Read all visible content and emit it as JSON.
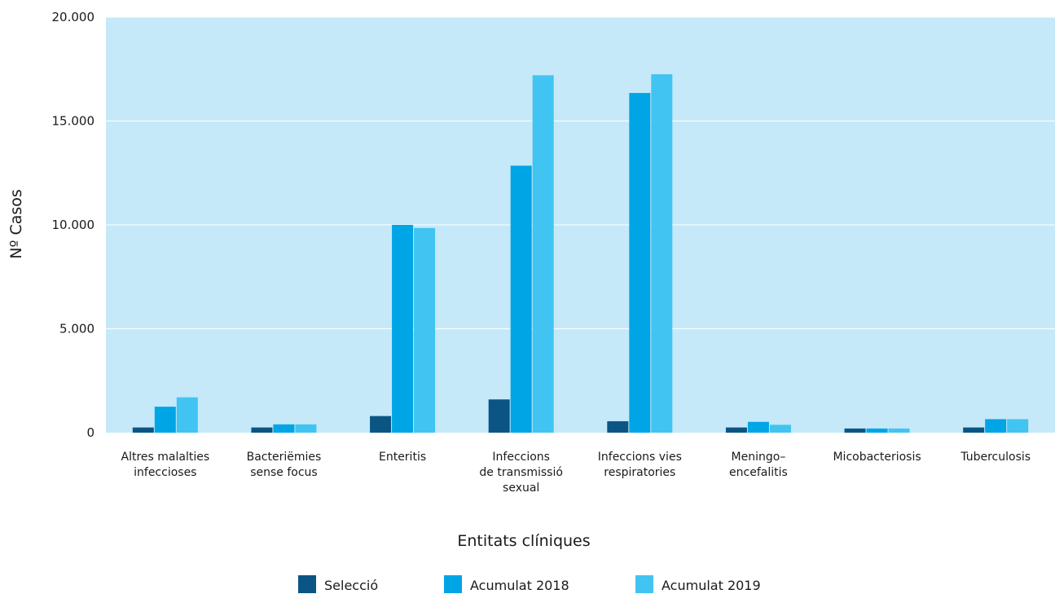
{
  "chart_data": {
    "type": "bar",
    "xlabel": "Entitats clíniques",
    "ylabel": "Nº Casos",
    "ylim": [
      0,
      20000
    ],
    "yticks": [
      0,
      5000,
      10000,
      15000,
      20000
    ],
    "ytick_labels": [
      "0",
      "5.000",
      "10.000",
      "15.000",
      "20.000"
    ],
    "grid": true,
    "legend_position": "bottom-center",
    "plot_background": "#c5e9f8",
    "categories": [
      [
        "Altres malalties",
        "infeccioses"
      ],
      [
        "Bacteriëmies",
        "sense focus"
      ],
      [
        "Enteritis"
      ],
      [
        "Infeccions",
        "de transmissió",
        "sexual"
      ],
      [
        "Infeccions vies",
        "respiratories"
      ],
      [
        "Meningo–",
        "encefalitis"
      ],
      [
        "Micobacteriosis"
      ],
      [
        "Tuberculosis"
      ]
    ],
    "series": [
      {
        "name": "Selecció",
        "color": "#0b5585",
        "values": [
          250,
          250,
          800,
          1600,
          550,
          250,
          200,
          250
        ]
      },
      {
        "name": "Acumulat 2018",
        "color": "#00a5e6",
        "values": [
          1250,
          400,
          10000,
          12850,
          16350,
          520,
          200,
          650
        ]
      },
      {
        "name": "Acumulat 2019",
        "color": "#41c4f1",
        "values": [
          1700,
          400,
          9850,
          17200,
          17250,
          380,
          200,
          650
        ]
      }
    ]
  }
}
